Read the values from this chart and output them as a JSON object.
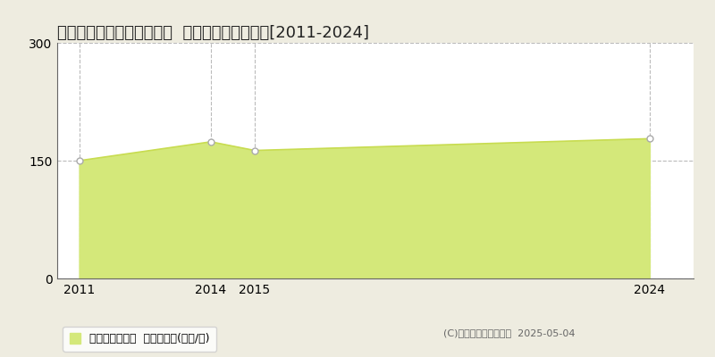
{
  "title": "京都市左京区岩倉東宮田町  マンション価格推移[2011-2024]",
  "years": [
    2011,
    2014,
    2015,
    2024
  ],
  "values": [
    150,
    174,
    163,
    178
  ],
  "fill_color": "#d4e87a",
  "line_color": "#c8dc50",
  "marker_facecolor": "white",
  "marker_edgecolor": "#aaaaaa",
  "ylim": [
    0,
    300
  ],
  "yticks": [
    0,
    150,
    300
  ],
  "xlim_left": 2010.5,
  "xlim_right": 2025.0,
  "grid_color": "#bbbbbb",
  "background_color": "#eeece0",
  "plot_bg_color": "#ffffff",
  "legend_label": "マンション価格  平均坪単価(万円/坪)",
  "copyright_text": "(C)土地価格ドットコム  2025-05-04",
  "title_fontsize": 13,
  "tick_fontsize": 10,
  "legend_fontsize": 9,
  "copyright_fontsize": 8
}
